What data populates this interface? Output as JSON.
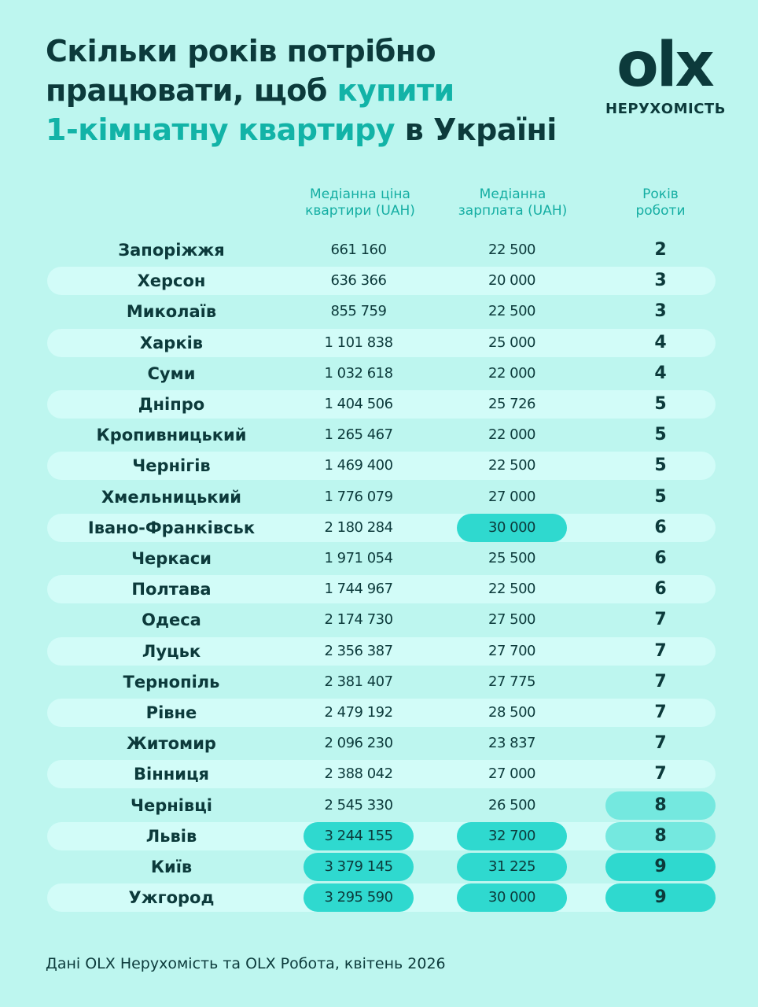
{
  "title": [
    [
      {
        "text": "Скільки років потрібно",
        "accent": false
      }
    ],
    [
      {
        "text": "працювати, щоб ",
        "accent": false
      },
      {
        "text": "купити",
        "accent": true
      }
    ],
    [
      {
        "text": "1-кімнатну квартиру",
        "accent": true
      },
      {
        "text": " в Україні",
        "accent": false
      }
    ]
  ],
  "logo": {
    "mark": "olx",
    "caption": "НЕРУХОМІСТЬ"
  },
  "table": {
    "header": [
      [
        "Медіанна ціна",
        "квартири (UAH)"
      ],
      [
        "Медіанна",
        "зарплата (UAH)"
      ],
      [
        "Років",
        "роботи"
      ]
    ],
    "rows": [
      [
        "Запоріжжя",
        "661 160",
        "22 500",
        "2"
      ],
      [
        "Херсон",
        "636 366",
        "20 000",
        "3"
      ],
      [
        "Миколаїв",
        "855 759",
        "22 500",
        "3"
      ],
      [
        "Харків",
        "1 101 838",
        "25 000",
        "4"
      ],
      [
        "Суми",
        "1 032 618",
        "22 000",
        "4"
      ],
      [
        "Дніпро",
        "1 404 506",
        "25 726",
        "5"
      ],
      [
        "Кропивницький",
        "1 265 467",
        "22 000",
        "5"
      ],
      [
        "Чернігів",
        "1 469 400",
        "22 500",
        "5"
      ],
      [
        "Хмельницький",
        "1 776 079",
        "27 000",
        "5"
      ],
      [
        "Івано-Франківськ",
        "2 180 284",
        "30 000",
        "6"
      ],
      [
        "Черкаси",
        "1 971 054",
        "25 500",
        "6"
      ],
      [
        "Полтава",
        "1 744 967",
        "22 500",
        "6"
      ],
      [
        "Одеса",
        "2 174 730",
        "27 500",
        "7"
      ],
      [
        "Луцьк",
        "2 356 387",
        "27 700",
        "7"
      ],
      [
        "Тернопіль",
        "2 381 407",
        "27 775",
        "7"
      ],
      [
        "Рівне",
        "2 479 192",
        "28 500",
        "7"
      ],
      [
        "Житомир",
        "2 096 230",
        "23 837",
        "7"
      ],
      [
        "Вінниця",
        "2 388 042",
        "27 000",
        "7"
      ],
      [
        "Чернівці",
        "2 545 330",
        "26 500",
        "8"
      ],
      [
        "Львів",
        "3 244 155",
        "32 700",
        "8"
      ],
      [
        "Київ",
        "3 379 145",
        "31 225",
        "9"
      ],
      [
        "Ужгород",
        "3 295 590",
        "30 000",
        "9"
      ]
    ],
    "highlights": [
      {
        "row": 9,
        "col": 2,
        "color": "#2fd9cf"
      },
      {
        "row": 18,
        "col": 3,
        "color": "#74e8df"
      },
      {
        "row": 19,
        "col": 1,
        "color": "#2fd9cf"
      },
      {
        "row": 19,
        "col": 2,
        "color": "#2fd9cf"
      },
      {
        "row": 19,
        "col": 3,
        "color": "#74e8df"
      },
      {
        "row": 20,
        "col": 1,
        "color": "#2fd9cf"
      },
      {
        "row": 20,
        "col": 2,
        "color": "#2fd9cf"
      },
      {
        "row": 20,
        "col": 3,
        "color": "#2fd9cf"
      },
      {
        "row": 21,
        "col": 1,
        "color": "#2fd9cf"
      },
      {
        "row": 21,
        "col": 2,
        "color": "#2fd9cf"
      },
      {
        "row": 21,
        "col": 3,
        "color": "#2fd9cf"
      }
    ]
  },
  "footer": "Дані OLX Нерухомість та OLX Робота, квітень 2026"
}
